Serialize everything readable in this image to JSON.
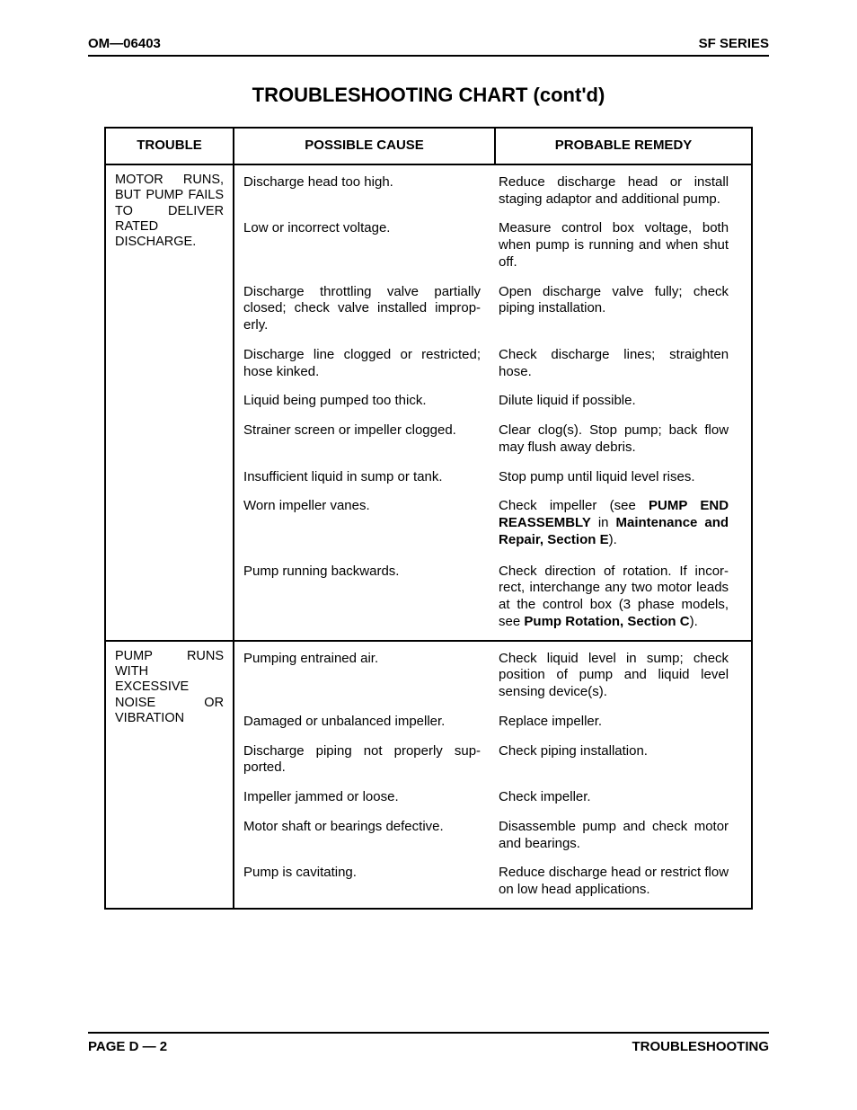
{
  "header": {
    "left": "OM—06403",
    "right": "SF SERIES"
  },
  "title": "TROUBLESHOOTING CHART (cont'd)",
  "columns": {
    "c1": "TROUBLE",
    "c2": "POSSIBLE CAUSE",
    "c3": "PROBABLE REMEDY"
  },
  "sections": [
    {
      "trouble": "MOTOR RUNS, BUT PUMP FAILS TO DELIVER RATED DISCHARGE.",
      "rows": [
        {
          "cause": "Discharge head too high.",
          "remedy": "Reduce discharge head or install staging adaptor and additional pump."
        },
        {
          "cause": "Low or incorrect voltage.",
          "remedy": "Measure control box voltage, both when pump is running and when shut off."
        },
        {
          "cause": "Discharge throttling valve partially closed; check valve installed improp­erly.",
          "remedy": "Open discharge valve fully; check piping installation."
        },
        {
          "cause": "Discharge line clogged or restricted; hose kinked.",
          "remedy": "Check discharge lines; straighten hose."
        },
        {
          "cause": "Liquid being pumped too thick.",
          "remedy": "Dilute liquid if possible."
        },
        {
          "cause": "Strainer screen or impeller clogged.",
          "remedy": "Clear clog(s). Stop pump; back flow may flush away debris."
        },
        {
          "cause": "Insufficient liquid in sump or tank.",
          "remedy": "Stop pump until liquid level rises."
        },
        {
          "cause": "Worn impeller vanes.",
          "remedy_html": "Check impeller (see <span class=\"bold\">PUMP END REASSEMBLY</span> in <span class=\"bold\">Maintenance and Repair, Section E</span>)."
        },
        {
          "cause": "Pump running backwards.",
          "remedy_html": "Check direction of rotation. If incor­rect, interchange any two motor leads at the control box (3 phase models, see <span class=\"bold\">Pump Rotation, Sec­tion C</span>).",
          "spacer_before": true
        }
      ]
    },
    {
      "trouble": "PUMP RUNS WITH EXCESSIVE NOISE OR VIBRATION",
      "rows": [
        {
          "cause": "Pumping entrained air.",
          "remedy": "Check liquid level in sump; check position of pump and liquid level sensing device(s)."
        },
        {
          "cause": "Damaged or unbalanced impeller.",
          "remedy": "Replace impeller."
        },
        {
          "cause": "Discharge piping not properly sup­ported.",
          "remedy": "Check piping installation."
        },
        {
          "cause": "Impeller jammed or loose.",
          "remedy": "Check impeller."
        },
        {
          "cause": "Motor shaft or bearings defective.",
          "remedy": "Disassemble pump and check mo­tor and bearings."
        },
        {
          "cause": "Pump is cavitating.",
          "remedy": "Reduce discharge head or restrict flow on low head applications."
        }
      ]
    }
  ],
  "footer": {
    "left": "PAGE D — 2",
    "right": "TROUBLESHOOTING"
  }
}
